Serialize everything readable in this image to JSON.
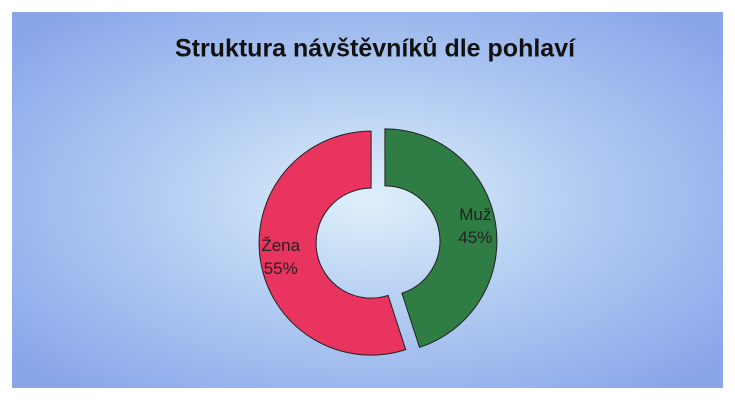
{
  "chart_data": {
    "type": "donut",
    "title": "Struktura návštěvníků dle pohlaví",
    "categories": [
      "Muž",
      "Žena"
    ],
    "values": [
      45,
      55
    ],
    "value_labels": [
      "45%",
      "55%"
    ],
    "colors": [
      "#2f7d45",
      "#e8345f"
    ]
  }
}
